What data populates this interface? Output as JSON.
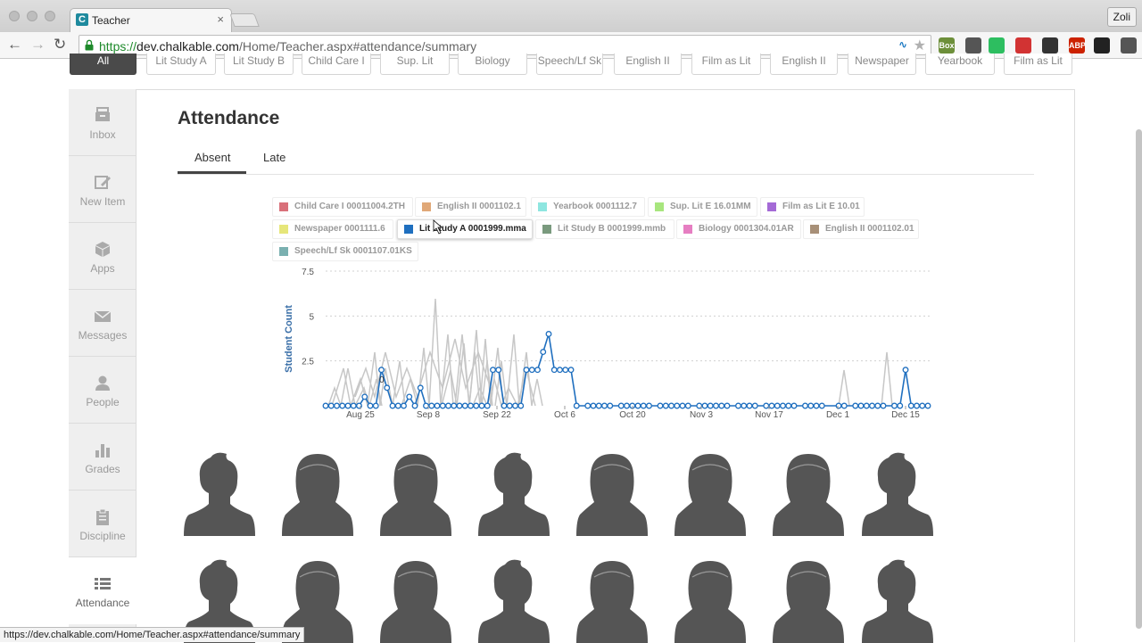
{
  "browser": {
    "tab_title": "Teacher",
    "tab_close": "×",
    "favicon_letter": "C",
    "profile": "Zoli",
    "url_scheme": "https://",
    "url_host": "dev.chalkable.com",
    "url_path": "/Home/Teacher.aspx#attendance/summary",
    "status_url": "https://dev.chalkable.com/Home/Teacher.aspx#attendance/summary",
    "extensions": [
      {
        "name": "box-on-icon",
        "label": "Box",
        "color": "#6d8f3a"
      },
      {
        "name": "pocket-icon",
        "label": "",
        "color": "#555555"
      },
      {
        "name": "evernote-icon",
        "label": "",
        "color": "#2dbe60"
      },
      {
        "name": "c-extension-icon",
        "label": "",
        "color": "#d23333"
      },
      {
        "name": "ident-icon",
        "label": "",
        "color": "#333333"
      },
      {
        "name": "adblock-icon",
        "label": "ABP",
        "color": "#cc2200"
      },
      {
        "name": "buffer-icon",
        "label": "",
        "color": "#222222"
      },
      {
        "name": "menu-icon",
        "label": "",
        "color": "#555555"
      }
    ]
  },
  "classes": [
    "All",
    "Lit Study A",
    "Lit Study B",
    "Child Care I",
    "Sup. Lit",
    "Biology",
    "Speech/Lf Sk",
    "English II",
    "Film as Lit",
    "English II",
    "Newspaper",
    "Yearbook",
    "Film as Lit"
  ],
  "sidebar": {
    "items": [
      {
        "label": "Inbox",
        "icon": "inbox-icon"
      },
      {
        "label": "New Item",
        "icon": "new-item-icon"
      },
      {
        "label": "Apps",
        "icon": "apps-icon"
      },
      {
        "label": "Messages",
        "icon": "messages-icon"
      },
      {
        "label": "People",
        "icon": "people-icon"
      },
      {
        "label": "Grades",
        "icon": "grades-icon"
      },
      {
        "label": "Discipline",
        "icon": "discipline-icon"
      },
      {
        "label": "Attendance",
        "icon": "attendance-icon"
      }
    ]
  },
  "main": {
    "title": "Attendance",
    "tabs": [
      {
        "label": "Absent"
      },
      {
        "label": "Late"
      }
    ]
  },
  "legend": [
    {
      "label": "Child Care I 00011004.2TH",
      "color": "#d9707a"
    },
    {
      "label": "English II 0001102.1",
      "color": "#e0a878"
    },
    {
      "label": "Yearbook 0001112.7",
      "color": "#8ee6e0"
    },
    {
      "label": "Sup. Lit E 16.01MM",
      "color": "#a8e67e"
    },
    {
      "label": "Film as Lit E 10.01",
      "color": "#a46ad6"
    },
    {
      "label": "Newspaper 0001111.6",
      "color": "#e6e67a"
    },
    {
      "label": "Lit Study A 0001999.mma",
      "color": "#1f6fbf"
    },
    {
      "label": "Lit Study B 0001999.mmb",
      "color": "#7a9a7e"
    },
    {
      "label": "Biology 0001304.01AR",
      "color": "#e67ec2"
    },
    {
      "label": "English II 0001102.01",
      "color": "#a89078"
    },
    {
      "label": "Speech/Lf Sk 0001107.01KS",
      "color": "#7ab0b0"
    }
  ],
  "chart_data": {
    "type": "line",
    "ylabel": "Student Count",
    "ylim": [
      0,
      7.5
    ],
    "yticks": [
      "7.5",
      "5",
      "2.5"
    ],
    "x_tick_labels": [
      "Aug 25",
      "Sep 8",
      "Sep 22",
      "Oct 6",
      "Oct 20",
      "Nov 3",
      "Nov 17",
      "Dec 1",
      "Dec 15"
    ],
    "highlighted_series": "Lit Study A 0001999.mma",
    "point_label": "0",
    "series": [
      {
        "name": "Lit Study A 0001999.mma",
        "x_day": [
          0,
          1,
          2,
          3,
          4,
          5,
          6,
          7,
          8,
          9,
          10,
          11,
          12,
          13,
          14,
          15,
          16,
          17,
          18,
          19,
          20,
          21,
          22,
          23,
          24,
          25,
          26,
          27,
          28,
          29,
          30,
          31,
          32,
          33,
          34,
          35,
          36,
          37,
          38,
          39,
          40,
          41,
          42,
          43,
          44,
          45,
          47,
          48,
          49,
          50,
          51,
          53,
          54,
          55,
          56,
          57,
          58,
          60,
          61,
          62,
          63,
          64,
          65,
          67,
          68,
          69,
          70,
          71,
          72,
          74,
          75,
          76,
          77,
          79,
          80,
          81,
          82,
          83,
          84,
          86,
          87,
          88,
          89,
          92,
          93,
          95,
          96,
          97,
          98,
          99,
          100,
          102,
          103,
          104,
          105,
          106,
          107,
          108
        ],
        "values": [
          0,
          0,
          0,
          0,
          0,
          0,
          0,
          0.5,
          0,
          0,
          2,
          1,
          0,
          0,
          0,
          0.5,
          0,
          1,
          0,
          0,
          0,
          0,
          0,
          0,
          0,
          0,
          0,
          0,
          0,
          0,
          2,
          2,
          0,
          0,
          0,
          0,
          2,
          2,
          2,
          3,
          4,
          2,
          2,
          2,
          2,
          0,
          0,
          0,
          0,
          0,
          0,
          0,
          0,
          0,
          0,
          0,
          0,
          0,
          0,
          0,
          0,
          0,
          0,
          0,
          0,
          0,
          0,
          0,
          0,
          0,
          0,
          0,
          0,
          0,
          0,
          0,
          0,
          0,
          0,
          0,
          0,
          0,
          0,
          0,
          0,
          0,
          0,
          0,
          0,
          0,
          0,
          0,
          0,
          2,
          0,
          0,
          0,
          0
        ]
      }
    ],
    "background_series_note": ""
  },
  "students": [
    {
      "type": "male"
    },
    {
      "type": "female"
    },
    {
      "type": "female"
    },
    {
      "type": "male"
    },
    {
      "type": "female"
    },
    {
      "type": "female"
    },
    {
      "type": "female"
    },
    {
      "type": "male"
    },
    {
      "type": "male"
    },
    {
      "type": "female"
    },
    {
      "type": "female"
    },
    {
      "type": "male"
    },
    {
      "type": "female"
    },
    {
      "type": "female"
    },
    {
      "type": "female"
    },
    {
      "type": "male"
    }
  ]
}
